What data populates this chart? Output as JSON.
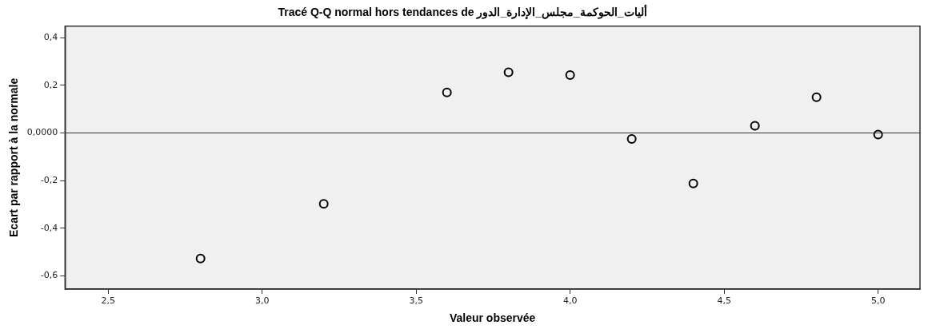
{
  "chart_data": {
    "type": "scatter",
    "title": "Tracé Q-Q normal hors tendances de أليات_الحوكمة_مجلس_الإدارة_الدور",
    "xlabel": "Valeur observée",
    "ylabel": "Ecart par rapport à la normale",
    "x": [
      2.8,
      3.2,
      3.6,
      3.8,
      4.0,
      4.2,
      4.4,
      4.6,
      4.8,
      5.0
    ],
    "series": [
      {
        "color": "#000000",
        "values": [
          -0.527,
          -0.297,
          0.17,
          0.255,
          0.243,
          -0.025,
          -0.212,
          0.03,
          0.15,
          -0.007
        ]
      }
    ],
    "xlim": [
      2.36,
      5.136
    ],
    "ylim": [
      -0.655,
      0.448
    ],
    "xticks": [
      {
        "value": 2.5,
        "label": "2,5"
      },
      {
        "value": 3.0,
        "label": "3,0"
      },
      {
        "value": 3.5,
        "label": "3,5"
      },
      {
        "value": 4.0,
        "label": "4,0"
      },
      {
        "value": 4.5,
        "label": "4,5"
      },
      {
        "value": 5.0,
        "label": "5,0"
      }
    ],
    "yticks": [
      {
        "value": -0.6,
        "label": "-0,6"
      },
      {
        "value": -0.4,
        "label": "-0,4"
      },
      {
        "value": -0.2,
        "label": "-0,2"
      },
      {
        "value": 0,
        "label": "0,0000"
      },
      {
        "value": 0.2,
        "label": "0,2"
      },
      {
        "value": 0.4,
        "label": "0,4"
      }
    ],
    "ref_lines": [
      {
        "axis": "y",
        "value": 0,
        "color": "#333333"
      }
    ],
    "marker": "circle",
    "grid": false,
    "legend": false
  }
}
